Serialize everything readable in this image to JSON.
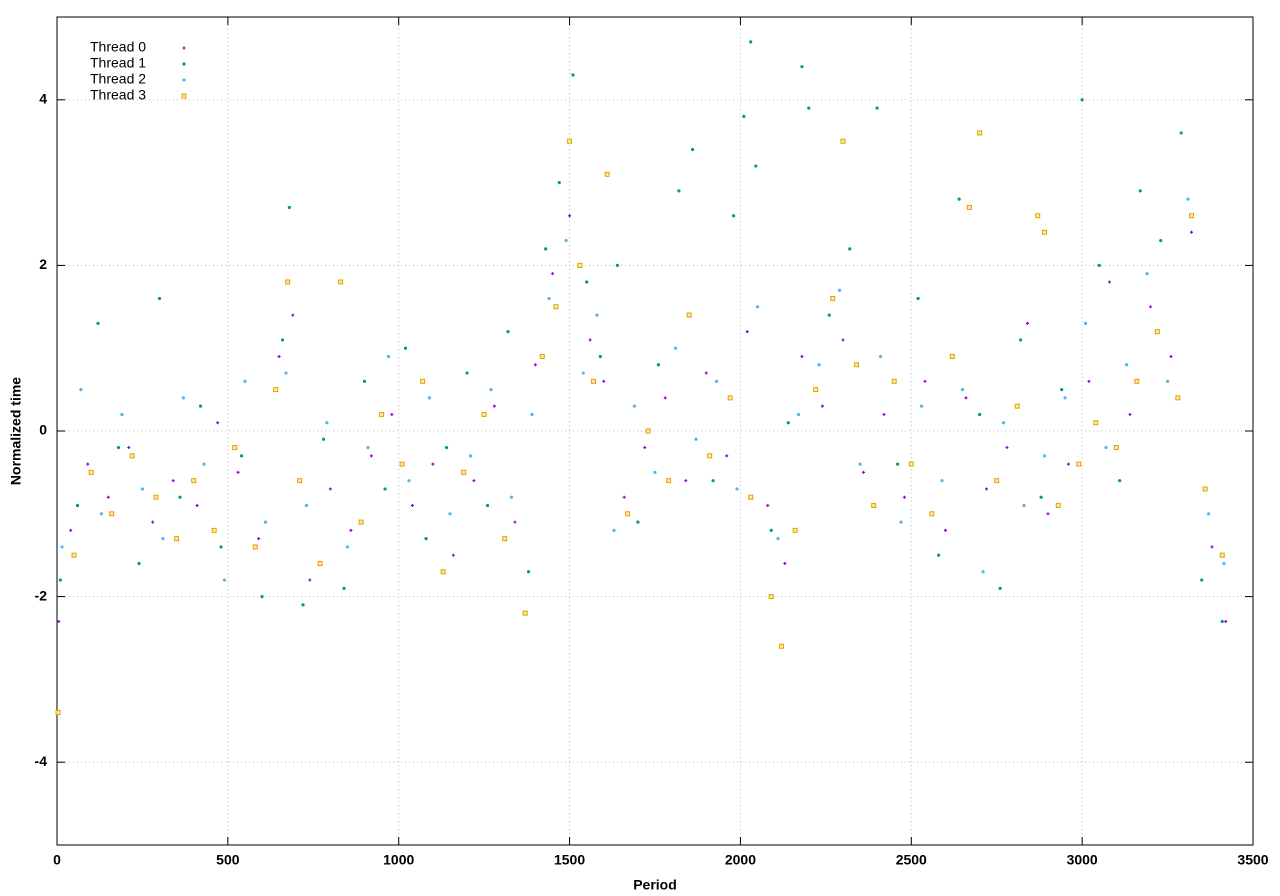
{
  "chart_data": {
    "type": "scatter",
    "xlabel": "Period",
    "ylabel": "Normalized time",
    "xlim": [
      0,
      3500
    ],
    "ylim": [
      -5,
      5
    ],
    "xticks": [
      0,
      500,
      1000,
      1500,
      2000,
      2500,
      3000,
      3500
    ],
    "yticks": [
      -4,
      -2,
      0,
      2,
      4
    ],
    "grid": true,
    "legend": "top-left",
    "series": [
      {
        "name": "Thread 0",
        "color": "#9400d3",
        "marker": "plus",
        "x": [
          5,
          40,
          90,
          150,
          210,
          280,
          340,
          410,
          470,
          530,
          590,
          650,
          690,
          740,
          800,
          860,
          920,
          980,
          1040,
          1100,
          1160,
          1220,
          1280,
          1340,
          1400,
          1450,
          1500,
          1560,
          1600,
          1660,
          1720,
          1780,
          1840,
          1900,
          1960,
          2020,
          2080,
          2130,
          2180,
          2240,
          2300,
          2360,
          2420,
          2480,
          2540,
          2600,
          2660,
          2720,
          2780,
          2840,
          2900,
          2960,
          3020,
          3080,
          3140,
          3200,
          3260,
          3320,
          3380,
          3420
        ],
        "values": [
          -2.3,
          -1.2,
          -0.4,
          -0.8,
          -0.2,
          -1.1,
          -0.6,
          -0.9,
          0.1,
          -0.5,
          -1.3,
          0.9,
          1.4,
          -1.8,
          -0.7,
          -1.2,
          -0.3,
          0.2,
          -0.9,
          -0.4,
          -1.5,
          -0.6,
          0.3,
          -1.1,
          0.8,
          1.9,
          2.6,
          1.1,
          0.6,
          -0.8,
          -0.2,
          0.4,
          -0.6,
          0.7,
          -0.3,
          1.2,
          -0.9,
          -1.6,
          0.9,
          0.3,
          1.1,
          -0.5,
          0.2,
          -0.8,
          0.6,
          -1.2,
          0.4,
          -0.7,
          -0.2,
          1.3,
          -1.0,
          -0.4,
          0.6,
          1.8,
          0.2,
          1.5,
          0.9,
          2.4,
          -1.4,
          -2.3
        ]
      },
      {
        "name": "Thread 1",
        "color": "#009e73",
        "marker": "dot",
        "x": [
          10,
          60,
          120,
          180,
          240,
          300,
          360,
          420,
          480,
          540,
          600,
          660,
          680,
          720,
          780,
          840,
          900,
          960,
          1020,
          1080,
          1140,
          1200,
          1260,
          1320,
          1380,
          1430,
          1470,
          1510,
          1550,
          1590,
          1640,
          1700,
          1760,
          1820,
          1860,
          1920,
          1980,
          2010,
          2030,
          2045,
          2090,
          2140,
          2180,
          2200,
          2260,
          2320,
          2400,
          2460,
          2520,
          2580,
          2640,
          2700,
          2760,
          2820,
          2880,
          2940,
          3000,
          3050,
          3110,
          3170,
          3230,
          3290,
          3350,
          3410
        ],
        "values": [
          -1.8,
          -0.9,
          1.3,
          -0.2,
          -1.6,
          1.6,
          -0.8,
          0.3,
          -1.4,
          -0.3,
          -2.0,
          1.1,
          2.7,
          -2.1,
          -0.1,
          -1.9,
          0.6,
          -0.7,
          1.0,
          -1.3,
          -0.2,
          0.7,
          -0.9,
          1.2,
          -1.7,
          2.2,
          3.0,
          4.3,
          1.8,
          0.9,
          2.0,
          -1.1,
          0.8,
          2.9,
          3.4,
          -0.6,
          2.6,
          3.8,
          4.7,
          3.2,
          -1.2,
          0.1,
          4.4,
          3.9,
          1.4,
          2.2,
          3.9,
          -0.4,
          1.6,
          -1.5,
          2.8,
          0.2,
          -1.9,
          1.1,
          -0.8,
          0.5,
          4.0,
          2.0,
          -0.6,
          2.9,
          2.3,
          3.6,
          -1.8,
          -2.3
        ]
      },
      {
        "name": "Thread 2",
        "color": "#56b4e9",
        "marker": "dot",
        "x": [
          15,
          70,
          130,
          190,
          250,
          310,
          370,
          430,
          490,
          550,
          610,
          670,
          730,
          790,
          850,
          910,
          970,
          1030,
          1090,
          1150,
          1210,
          1270,
          1330,
          1390,
          1440,
          1490,
          1540,
          1580,
          1630,
          1690,
          1750,
          1810,
          1870,
          1930,
          1990,
          2050,
          2110,
          2170,
          2230,
          2290,
          2350,
          2410,
          2470,
          2530,
          2590,
          2650,
          2710,
          2770,
          2830,
          2890,
          2950,
          3010,
          3070,
          3130,
          3190,
          3250,
          3310,
          3370,
          3415
        ],
        "values": [
          -1.4,
          0.5,
          -1.0,
          0.2,
          -0.7,
          -1.3,
          0.4,
          -0.4,
          -1.8,
          0.6,
          -1.1,
          0.7,
          -0.9,
          0.1,
          -1.4,
          -0.2,
          0.9,
          -0.6,
          0.4,
          -1.0,
          -0.3,
          0.5,
          -0.8,
          0.2,
          1.6,
          2.3,
          0.7,
          1.4,
          -1.2,
          0.3,
          -0.5,
          1.0,
          -0.1,
          0.6,
          -0.7,
          1.5,
          -1.3,
          0.2,
          0.8,
          1.7,
          -0.4,
          0.9,
          -1.1,
          0.3,
          -0.6,
          0.5,
          -1.7,
          0.1,
          -0.9,
          -0.3,
          0.4,
          1.3,
          -0.2,
          0.8,
          1.9,
          0.6,
          2.8,
          -1.0,
          -1.6
        ]
      },
      {
        "name": "Thread 3",
        "color": "#e69f00",
        "marker": "square",
        "x": [
          3,
          50,
          100,
          160,
          220,
          290,
          350,
          400,
          460,
          520,
          580,
          640,
          675,
          710,
          770,
          830,
          890,
          950,
          1010,
          1070,
          1130,
          1190,
          1250,
          1310,
          1370,
          1420,
          1460,
          1500,
          1530,
          1570,
          1610,
          1670,
          1730,
          1790,
          1850,
          1910,
          1970,
          2030,
          2090,
          2120,
          2160,
          2220,
          2270,
          2300,
          2340,
          2390,
          2450,
          2500,
          2560,
          2620,
          2670,
          2700,
          2750,
          2810,
          2870,
          2890,
          2930,
          2990,
          3040,
          3100,
          3160,
          3220,
          3280,
          3320,
          3360,
          3410
        ],
        "values": [
          -3.4,
          -1.5,
          -0.5,
          -1.0,
          -0.3,
          -0.8,
          -1.3,
          -0.6,
          -1.2,
          -0.2,
          -1.4,
          0.5,
          1.8,
          -0.6,
          -1.6,
          1.8,
          -1.1,
          0.2,
          -0.4,
          0.6,
          -1.7,
          -0.5,
          0.2,
          -1.3,
          -2.2,
          0.9,
          1.5,
          3.5,
          2.0,
          0.6,
          3.1,
          -1.0,
          0.0,
          -0.6,
          1.4,
          -0.3,
          0.4,
          -0.8,
          -2.0,
          -2.6,
          -1.2,
          0.5,
          1.6,
          3.5,
          0.8,
          -0.9,
          0.6,
          -0.4,
          -1.0,
          0.9,
          2.7,
          3.6,
          -0.6,
          0.3,
          2.6,
          2.4,
          -0.9,
          -0.4,
          0.1,
          -0.2,
          0.6,
          1.2,
          0.4,
          2.6,
          -0.7,
          -1.5
        ]
      }
    ]
  }
}
